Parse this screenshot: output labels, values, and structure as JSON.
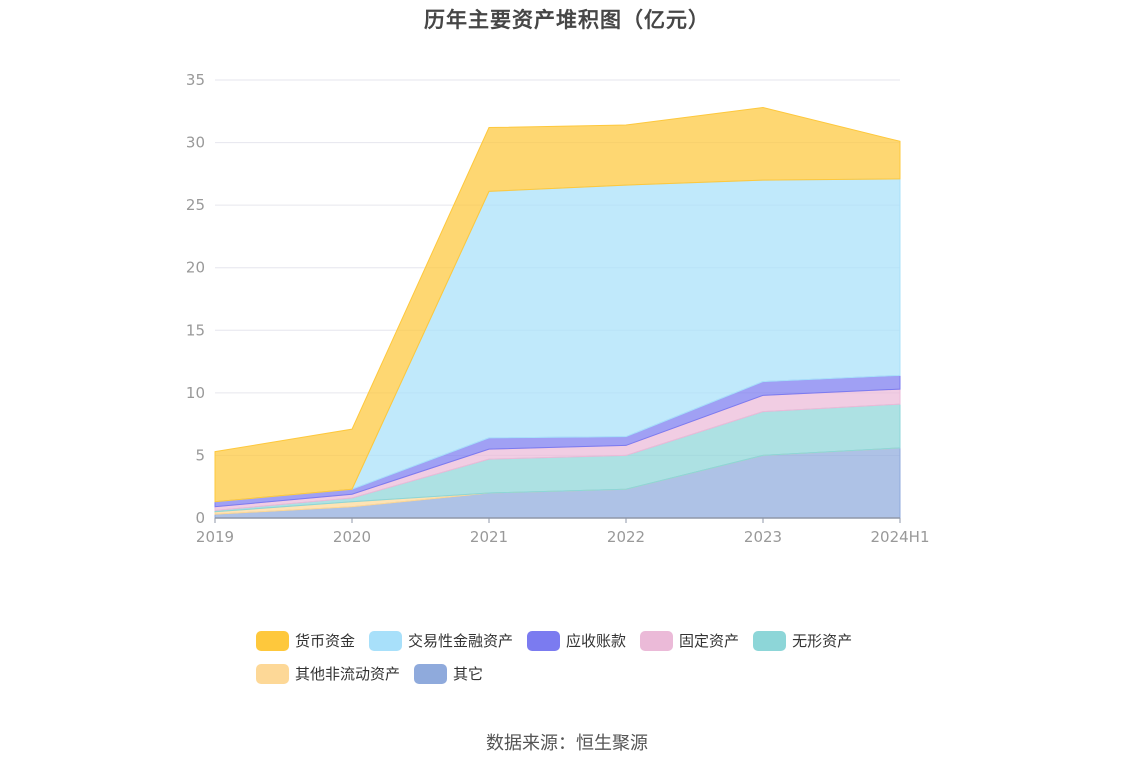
{
  "chart_data": {
    "type": "area",
    "stacked": true,
    "title": "历年主要资产堆积图（亿元）",
    "categories": [
      "2019",
      "2020",
      "2021",
      "2022",
      "2023",
      "2024H1"
    ],
    "ylim": [
      0,
      35
    ],
    "yticks": [
      0,
      5,
      10,
      15,
      20,
      25,
      30,
      35
    ],
    "grid": true,
    "legend_position": "bottom",
    "series": [
      {
        "name": "其它",
        "color": "#8faadc",
        "values": [
          0.3,
          0.9,
          2.0,
          2.3,
          5.0,
          5.6
        ]
      },
      {
        "name": "其他非流动资产",
        "color": "#fdd897",
        "values": [
          0.2,
          0.4,
          0.0,
          0.0,
          0.0,
          0.0
        ]
      },
      {
        "name": "无形资产",
        "color": "#8dd6d8",
        "values": [
          0.1,
          0.3,
          2.7,
          2.7,
          3.5,
          3.5
        ]
      },
      {
        "name": "固定资产",
        "color": "#ebbad8",
        "values": [
          0.3,
          0.3,
          0.8,
          0.8,
          1.3,
          1.2
        ]
      },
      {
        "name": "应收账款",
        "color": "#7b7bf0",
        "values": [
          0.4,
          0.4,
          0.9,
          0.7,
          1.1,
          1.1
        ]
      },
      {
        "name": "交易性金融资产",
        "color": "#a8e0fa",
        "values": [
          0.0,
          0.0,
          19.7,
          20.1,
          16.1,
          15.7
        ]
      },
      {
        "name": "货币资金",
        "color": "#fec83c",
        "values": [
          4.0,
          4.8,
          5.1,
          4.8,
          5.8,
          3.0
        ]
      }
    ],
    "legend_order": [
      "货币资金",
      "交易性金融资产",
      "应收账款",
      "固定资产",
      "无形资产",
      "其他非流动资产",
      "其它"
    ]
  },
  "source": "数据来源：恒生聚源"
}
